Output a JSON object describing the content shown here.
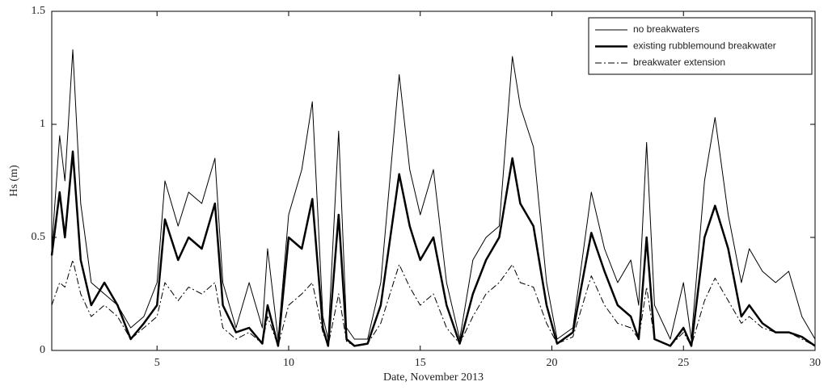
{
  "chart_data": {
    "type": "line",
    "x_label": "Date, November 2013",
    "y_label": "Hs (m)",
    "xlim": [
      1,
      30
    ],
    "xticks": [
      5,
      10,
      15,
      20,
      25,
      30
    ],
    "ylim": [
      0,
      1.5
    ],
    "yticks": [
      0,
      0.5,
      1,
      1.5
    ],
    "legend": "upper right",
    "x": [
      1,
      1.3,
      1.5,
      1.8,
      2.1,
      2.5,
      3,
      3.5,
      4,
      4.5,
      5,
      5.3,
      5.8,
      6.2,
      6.7,
      7.2,
      7.5,
      8,
      8.5,
      9,
      9.2,
      9.6,
      10,
      10.5,
      10.9,
      11.3,
      11.5,
      11.9,
      12.2,
      12.5,
      13,
      13.5,
      14.2,
      14.6,
      15,
      15.5,
      16,
      16.5,
      17,
      17.5,
      18,
      18.5,
      18.8,
      19.3,
      19.8,
      20.2,
      20.8,
      21.5,
      22,
      22.5,
      23,
      23.3,
      23.6,
      23.9,
      24.5,
      25,
      25.3,
      25.8,
      26.2,
      26.7,
      27.2,
      27.5,
      28,
      28.5,
      29,
      29.5,
      30
    ],
    "series": [
      {
        "name": "no breakwaters",
        "color": "#000000",
        "line_width": 1,
        "style": "solid",
        "values": [
          0.45,
          0.95,
          0.75,
          1.33,
          0.65,
          0.3,
          0.25,
          0.2,
          0.1,
          0.15,
          0.3,
          0.75,
          0.55,
          0.7,
          0.65,
          0.85,
          0.3,
          0.1,
          0.3,
          0.1,
          0.45,
          0.05,
          0.6,
          0.8,
          1.1,
          0.15,
          0.05,
          0.97,
          0.1,
          0.05,
          0.05,
          0.3,
          1.22,
          0.8,
          0.6,
          0.8,
          0.3,
          0.05,
          0.4,
          0.5,
          0.55,
          1.3,
          1.08,
          0.9,
          0.3,
          0.05,
          0.1,
          0.7,
          0.45,
          0.3,
          0.4,
          0.2,
          0.92,
          0.2,
          0.05,
          0.3,
          0.05,
          0.75,
          1.03,
          0.6,
          0.3,
          0.45,
          0.35,
          0.3,
          0.35,
          0.15,
          0.05
        ]
      },
      {
        "name": "existing rubblemound breakwater",
        "color": "#000000",
        "line_width": 2.5,
        "style": "solid",
        "values": [
          0.42,
          0.7,
          0.5,
          0.88,
          0.4,
          0.2,
          0.3,
          0.2,
          0.05,
          0.12,
          0.2,
          0.58,
          0.4,
          0.5,
          0.45,
          0.65,
          0.2,
          0.08,
          0.1,
          0.03,
          0.2,
          0.02,
          0.5,
          0.45,
          0.67,
          0.1,
          0.02,
          0.6,
          0.05,
          0.02,
          0.03,
          0.2,
          0.78,
          0.55,
          0.4,
          0.5,
          0.2,
          0.03,
          0.25,
          0.4,
          0.5,
          0.85,
          0.65,
          0.55,
          0.2,
          0.03,
          0.08,
          0.52,
          0.35,
          0.2,
          0.15,
          0.05,
          0.5,
          0.05,
          0.02,
          0.1,
          0.02,
          0.5,
          0.64,
          0.45,
          0.15,
          0.2,
          0.12,
          0.08,
          0.08,
          0.06,
          0.02
        ]
      },
      {
        "name": "breakwater extension",
        "color": "#000000",
        "line_width": 1,
        "style": "dash-dot",
        "values": [
          0.2,
          0.3,
          0.28,
          0.4,
          0.25,
          0.15,
          0.2,
          0.15,
          0.05,
          0.1,
          0.15,
          0.3,
          0.22,
          0.28,
          0.25,
          0.3,
          0.1,
          0.05,
          0.08,
          0.03,
          0.15,
          0.02,
          0.2,
          0.25,
          0.3,
          0.08,
          0.02,
          0.25,
          0.04,
          0.02,
          0.03,
          0.12,
          0.38,
          0.28,
          0.2,
          0.25,
          0.1,
          0.03,
          0.15,
          0.25,
          0.3,
          0.38,
          0.3,
          0.28,
          0.12,
          0.03,
          0.06,
          0.33,
          0.2,
          0.12,
          0.1,
          0.05,
          0.28,
          0.05,
          0.02,
          0.08,
          0.02,
          0.22,
          0.32,
          0.22,
          0.12,
          0.15,
          0.1,
          0.08,
          0.08,
          0.05,
          0.02
        ]
      }
    ]
  }
}
